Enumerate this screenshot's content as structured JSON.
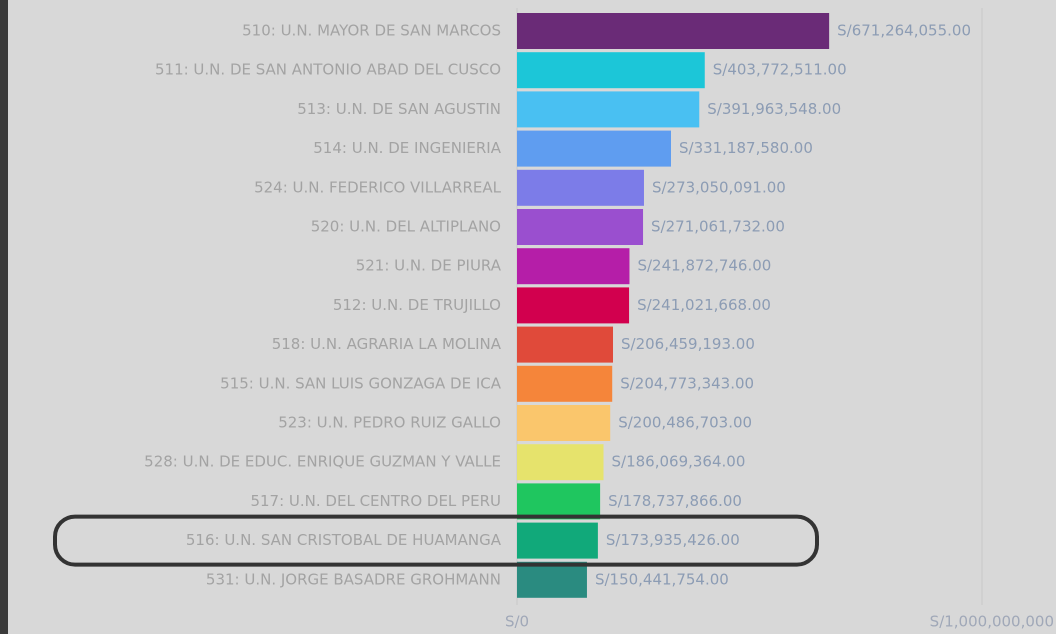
{
  "chart_data": {
    "type": "bar",
    "orientation": "horizontal",
    "categories": [
      "510: U.N. MAYOR DE SAN MARCOS",
      "511: U.N. DE SAN ANTONIO ABAD DEL CUSCO",
      "513: U.N. DE SAN AGUSTIN",
      "514: U.N. DE INGENIERIA",
      "524: U.N. FEDERICO VILLARREAL",
      "520: U.N. DEL ALTIPLANO",
      "521: U.N. DE PIURA",
      "512: U.N. DE TRUJILLO",
      "518: U.N. AGRARIA LA MOLINA",
      "515: U.N. SAN LUIS GONZAGA DE ICA",
      "523: U.N. PEDRO RUIZ GALLO",
      "528: U.N. DE EDUC. ENRIQUE GUZMAN Y VALLE",
      "517: U.N. DEL CENTRO DEL PERU",
      "516: U.N. SAN CRISTOBAL DE HUAMANGA",
      "531: U.N. JORGE BASADRE GROHMANN"
    ],
    "values": [
      671264055,
      403772511,
      391963548,
      331187580,
      273050091,
      271061732,
      241872746,
      241021668,
      206459193,
      204773343,
      200486703,
      186069364,
      178737866,
      173935426,
      150441754
    ],
    "value_labels": [
      "S/671,264,055.00",
      "S/403,772,511.00",
      "S/391,963,548.00",
      "S/331,187,580.00",
      "S/273,050,091.00",
      "S/271,061,732.00",
      "S/241,872,746.00",
      "S/241,021,668.00",
      "S/206,459,193.00",
      "S/204,773,343.00",
      "S/200,486,703.00",
      "S/186,069,364.00",
      "S/178,737,866.00",
      "S/173,935,426.00",
      "S/150,441,754.00"
    ],
    "colors": [
      "#6a2b77",
      "#1cc6d8",
      "#49c0f2",
      "#5f9df0",
      "#7c7ce8",
      "#9a4fcf",
      "#b51ea8",
      "#d2004e",
      "#e04a3a",
      "#f5853a",
      "#fac66c",
      "#e6e36c",
      "#1fc65f",
      "#11a97a",
      "#2a8b80"
    ],
    "xlim": [
      0,
      1000000000
    ],
    "xticks": [
      {
        "value": 0,
        "label": "S/0"
      },
      {
        "value": 1000000000,
        "label": "S/1,000,000,000"
      }
    ],
    "grid": true
  }
}
